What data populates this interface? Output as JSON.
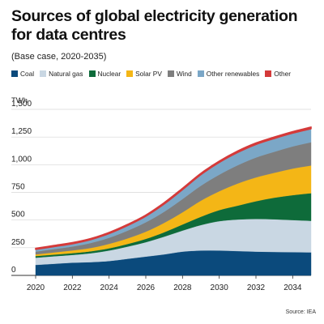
{
  "title": "Sources of global electricity generation for data centres",
  "subtitle": "(Base case, 2020-2035)",
  "source": "Source: IEA",
  "chart_data": {
    "type": "area",
    "stacked": true,
    "ylabel": "TWh",
    "x": [
      2020,
      2021,
      2022,
      2023,
      2024,
      2025,
      2026,
      2027,
      2028,
      2029,
      2030,
      2031,
      2032,
      2033,
      2034,
      2035
    ],
    "xticks": [
      2020,
      2022,
      2024,
      2026,
      2028,
      2030,
      2032,
      2034
    ],
    "xtick_labels": [
      "2020",
      "2022",
      "2024",
      "2026",
      "2028",
      "2030",
      "2032",
      "2034"
    ],
    "xlim": [
      2020,
      2035
    ],
    "ylim": [
      0,
      1500
    ],
    "yticks": [
      0,
      250,
      500,
      750,
      1000,
      1250,
      1500
    ],
    "ytick_labels": [
      "0",
      "250",
      "500",
      "750",
      "1,000",
      "1,250",
      "1,500"
    ],
    "grid": true,
    "legend_position": "top",
    "series": [
      {
        "name": "Coal",
        "color": "#0b4a7c",
        "values": [
          95,
          105,
          115,
          120,
          130,
          150,
          170,
          190,
          215,
          225,
          225,
          220,
          215,
          212,
          210,
          208
        ]
      },
      {
        "name": "Natural gas",
        "color": "#c9d7e3",
        "values": [
          65,
          68,
          70,
          80,
          95,
          110,
          130,
          160,
          190,
          230,
          265,
          285,
          295,
          295,
          290,
          285
        ]
      },
      {
        "name": "Nuclear",
        "color": "#0e6b3a",
        "values": [
          15,
          15,
          16,
          18,
          20,
          24,
          30,
          40,
          55,
          75,
          100,
          125,
          160,
          195,
          225,
          250
        ]
      },
      {
        "name": "Solar PV",
        "color": "#f4b616",
        "values": [
          15,
          20,
          25,
          30,
          40,
          50,
          65,
          85,
          110,
          145,
          170,
          200,
          215,
          225,
          240,
          250
        ]
      },
      {
        "name": "Wind",
        "color": "#7e7e7e",
        "values": [
          25,
          30,
          35,
          45,
          55,
          70,
          85,
          100,
          120,
          135,
          150,
          165,
          180,
          190,
          200,
          210
        ]
      },
      {
        "name": "Other renewables",
        "color": "#7ba7c7",
        "values": [
          20,
          22,
          25,
          30,
          38,
          46,
          55,
          70,
          85,
          100,
          110,
          115,
          118,
          120,
          120,
          122
        ]
      },
      {
        "name": "Other",
        "color": "#d43a3a",
        "values": [
          10,
          10,
          10,
          10,
          10,
          10,
          10,
          12,
          12,
          12,
          12,
          13,
          13,
          13,
          14,
          15
        ]
      }
    ]
  }
}
